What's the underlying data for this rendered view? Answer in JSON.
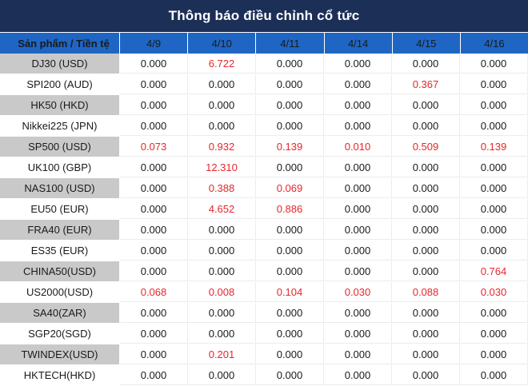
{
  "title": "Thông báo điều chỉnh cổ tức",
  "header": {
    "first_col": "Sản phẩm / Tiền tệ",
    "dates": [
      "4/9",
      "4/10",
      "4/11",
      "4/14",
      "4/15",
      "4/16"
    ]
  },
  "colors": {
    "title_bg": "#1b2f57",
    "header_bg": "#1f66c4",
    "shaded_label_bg": "#c9c9c9",
    "positive_text": "#e8262a",
    "zero_text": "#1a1a1a"
  },
  "rows": [
    {
      "product": "DJ30 (USD)",
      "values": [
        "0.000",
        "6.722",
        "0.000",
        "0.000",
        "0.000",
        "0.000"
      ]
    },
    {
      "product": "SPI200 (AUD)",
      "values": [
        "0.000",
        "0.000",
        "0.000",
        "0.000",
        "0.367",
        "0.000"
      ]
    },
    {
      "product": "HK50 (HKD)",
      "values": [
        "0.000",
        "0.000",
        "0.000",
        "0.000",
        "0.000",
        "0.000"
      ]
    },
    {
      "product": "Nikkei225 (JPN)",
      "values": [
        "0.000",
        "0.000",
        "0.000",
        "0.000",
        "0.000",
        "0.000"
      ]
    },
    {
      "product": "SP500 (USD)",
      "values": [
        "0.073",
        "0.932",
        "0.139",
        "0.010",
        "0.509",
        "0.139"
      ]
    },
    {
      "product": "UK100 (GBP)",
      "values": [
        "0.000",
        "12.310",
        "0.000",
        "0.000",
        "0.000",
        "0.000"
      ]
    },
    {
      "product": "NAS100 (USD)",
      "values": [
        "0.000",
        "0.388",
        "0.069",
        "0.000",
        "0.000",
        "0.000"
      ]
    },
    {
      "product": "EU50 (EUR)",
      "values": [
        "0.000",
        "4.652",
        "0.886",
        "0.000",
        "0.000",
        "0.000"
      ]
    },
    {
      "product": "FRA40 (EUR)",
      "values": [
        "0.000",
        "0.000",
        "0.000",
        "0.000",
        "0.000",
        "0.000"
      ]
    },
    {
      "product": "ES35 (EUR)",
      "values": [
        "0.000",
        "0.000",
        "0.000",
        "0.000",
        "0.000",
        "0.000"
      ]
    },
    {
      "product": "CHINA50(USD)",
      "values": [
        "0.000",
        "0.000",
        "0.000",
        "0.000",
        "0.000",
        "0.764"
      ]
    },
    {
      "product": "US2000(USD)",
      "values": [
        "0.068",
        "0.008",
        "0.104",
        "0.030",
        "0.088",
        "0.030"
      ]
    },
    {
      "product": "SA40(ZAR)",
      "values": [
        "0.000",
        "0.000",
        "0.000",
        "0.000",
        "0.000",
        "0.000"
      ]
    },
    {
      "product": "SGP20(SGD)",
      "values": [
        "0.000",
        "0.000",
        "0.000",
        "0.000",
        "0.000",
        "0.000"
      ]
    },
    {
      "product": "TWINDEX(USD)",
      "values": [
        "0.000",
        "0.201",
        "0.000",
        "0.000",
        "0.000",
        "0.000"
      ]
    },
    {
      "product": "HKTECH(HKD)",
      "values": [
        "0.000",
        "0.000",
        "0.000",
        "0.000",
        "0.000",
        "0.000"
      ]
    }
  ]
}
